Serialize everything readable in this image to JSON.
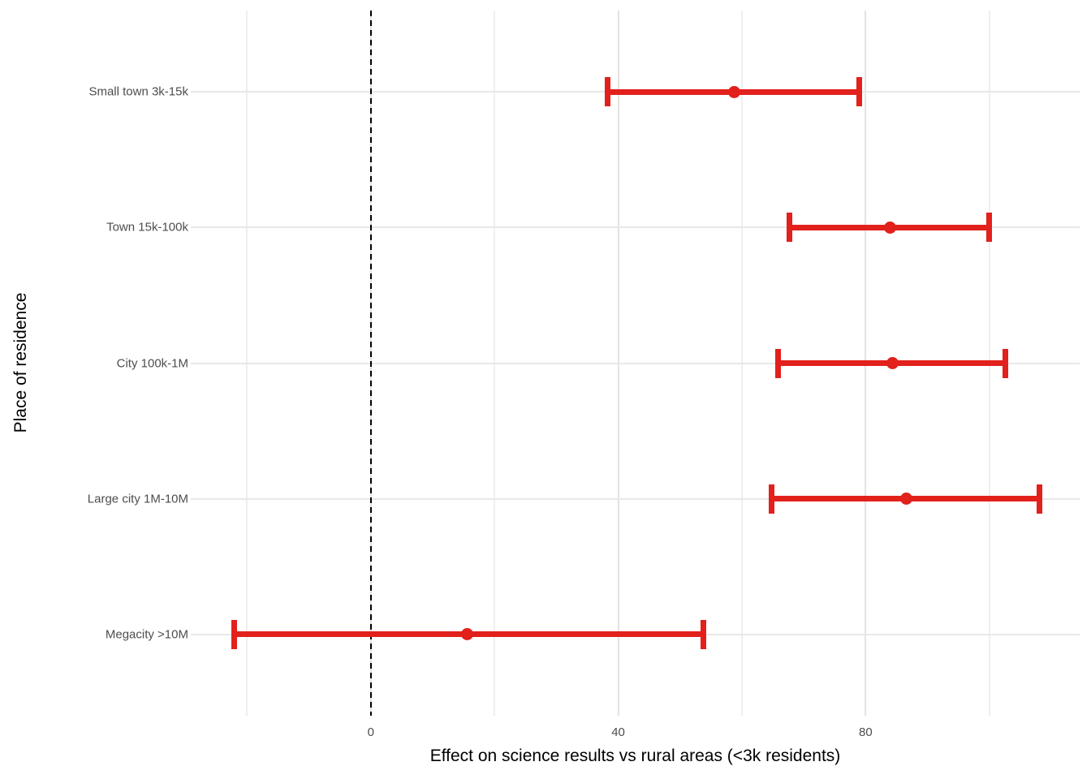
{
  "chart_data": {
    "type": "scatter",
    "subtype": "forest-plot-horizontal-errorbars",
    "title": "",
    "xlabel": "Effect on science results vs rural areas (<3k residents)",
    "ylabel": "Place of residence",
    "categories": [
      "Small town 3k-15k",
      "Town 15k-100k",
      "City 100k-1M",
      "Large city 1M-10M",
      "Megacity >10M"
    ],
    "points": [
      {
        "label": "Small town 3k-15k",
        "estimate": 58.7,
        "ci_low": 38.3,
        "ci_high": 79.0
      },
      {
        "label": "Town 15k-100k",
        "estimate": 84.0,
        "ci_low": 67.7,
        "ci_high": 100.0
      },
      {
        "label": "City 100k-1M",
        "estimate": 84.4,
        "ci_low": 65.9,
        "ci_high": 102.6
      },
      {
        "label": "Large city 1M-10M",
        "estimate": 86.6,
        "ci_low": 64.8,
        "ci_high": 108.1
      },
      {
        "label": "Megacity >10M",
        "estimate": 15.6,
        "ci_low": -22.1,
        "ci_high": 53.8
      }
    ],
    "x_ticks": [
      0,
      40,
      80
    ],
    "x_major_gridlines": [
      0,
      40,
      80
    ],
    "x_minor_gridlines": [
      -20,
      20,
      60,
      100
    ],
    "xlim": [
      -29.1,
      114.6
    ],
    "reference_line_x": 0,
    "grid": true,
    "legend": false,
    "colors": {
      "marker": "#E2201C",
      "reference_line": "#000000",
      "grid_major": "#E3E3E3",
      "grid_minor": "#EFEFEF",
      "grid_row": "#E8E8E8",
      "axis_text": "#4D4D4D",
      "axis_title": "#000000",
      "background": "#FFFFFF"
    }
  }
}
